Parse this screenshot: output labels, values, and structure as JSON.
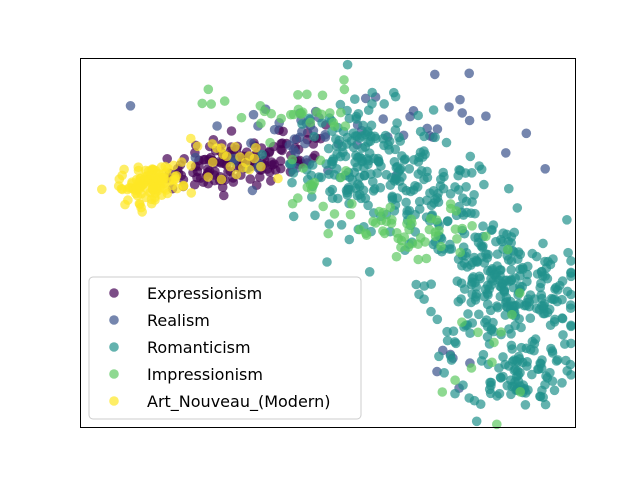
{
  "chart_data": {
    "type": "scatter",
    "title": "",
    "xlabel": "",
    "ylabel": "",
    "axes_visible": false,
    "legend_position": "lower-left",
    "xlim": [
      0,
      100
    ],
    "ylim": [
      0,
      100
    ],
    "series": [
      {
        "name": "Expressionism",
        "color": "#440154",
        "clusters": [
          {
            "cx": 31,
            "cy": 71,
            "sx": 6.5,
            "sy": 3.0,
            "n": 120,
            "tilt": 0.15
          },
          {
            "cx": 42,
            "cy": 76,
            "sx": 5,
            "sy": 4,
            "n": 20,
            "tilt": 0
          }
        ]
      },
      {
        "name": "Realism",
        "color": "#3b528b",
        "clusters": [
          {
            "cx": 45,
            "cy": 79,
            "sx": 10,
            "sy": 7,
            "n": 45,
            "tilt": 0
          },
          {
            "cx": 72,
            "cy": 82,
            "sx": 8,
            "sy": 6,
            "n": 20,
            "tilt": 0
          },
          {
            "cx": 75,
            "cy": 20,
            "sx": 2,
            "sy": 6,
            "n": 6,
            "tilt": 0
          }
        ]
      },
      {
        "name": "Romanticism",
        "color": "#21918c",
        "clusters": [
          {
            "cx": 57,
            "cy": 72,
            "sx": 7,
            "sy": 8,
            "n": 180,
            "tilt": 0
          },
          {
            "cx": 72,
            "cy": 60,
            "sx": 6,
            "sy": 7,
            "n": 90,
            "tilt": 0
          },
          {
            "cx": 84,
            "cy": 38,
            "sx": 7,
            "sy": 9,
            "n": 200,
            "tilt": 0
          },
          {
            "cx": 88,
            "cy": 14,
            "sx": 5,
            "sy": 4,
            "n": 80,
            "tilt": 0
          },
          {
            "cx": 92,
            "cy": 33,
            "sx": 4,
            "sy": 8,
            "n": 60,
            "tilt": 0
          }
        ]
      },
      {
        "name": "Impressionism",
        "color": "#5ec962",
        "clusters": [
          {
            "cx": 42,
            "cy": 86,
            "sx": 8,
            "sy": 4,
            "n": 30,
            "tilt": 0
          },
          {
            "cx": 68,
            "cy": 52,
            "sx": 8,
            "sy": 4,
            "n": 50,
            "tilt": 0
          },
          {
            "cx": 48,
            "cy": 66,
            "sx": 5,
            "sy": 6,
            "n": 15,
            "tilt": 0
          },
          {
            "cx": 82,
            "cy": 20,
            "sx": 4,
            "sy": 8,
            "n": 12,
            "tilt": 0
          }
        ]
      },
      {
        "name": "Art_Nouveau_(Modern)",
        "color": "#fde725",
        "clusters": [
          {
            "cx": 14,
            "cy": 66,
            "sx": 3.2,
            "sy": 2.3,
            "n": 110,
            "tilt": 0.25
          },
          {
            "cx": 32,
            "cy": 72,
            "sx": 7,
            "sy": 3,
            "n": 25,
            "tilt": 0
          }
        ]
      }
    ]
  }
}
